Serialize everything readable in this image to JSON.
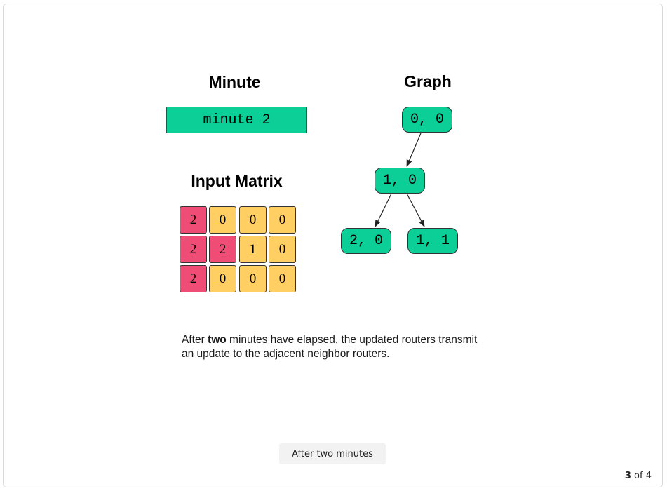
{
  "minute_section": {
    "title": "Minute",
    "value": "minute 2"
  },
  "matrix_section": {
    "title": "Input Matrix",
    "rows": [
      [
        {
          "value": "2",
          "color": "#ef4d75"
        },
        {
          "value": "0",
          "color": "#ffcf63"
        },
        {
          "value": "0",
          "color": "#ffcf63"
        },
        {
          "value": "0",
          "color": "#ffcf63"
        }
      ],
      [
        {
          "value": "2",
          "color": "#ef4d75"
        },
        {
          "value": "2",
          "color": "#ef4d75"
        },
        {
          "value": "1",
          "color": "#ffcf63"
        },
        {
          "value": "0",
          "color": "#ffcf63"
        }
      ],
      [
        {
          "value": "2",
          "color": "#ef4d75"
        },
        {
          "value": "0",
          "color": "#ffcf63"
        },
        {
          "value": "0",
          "color": "#ffcf63"
        },
        {
          "value": "0",
          "color": "#ffcf63"
        }
      ]
    ]
  },
  "graph_section": {
    "title": "Graph",
    "nodes": [
      "0, 0",
      "1, 0",
      "2, 0",
      "1, 1"
    ],
    "edges": [
      [
        "0, 0",
        "1, 0"
      ],
      [
        "1, 0",
        "2, 0"
      ],
      [
        "1, 0",
        "1, 1"
      ]
    ],
    "node_color": "#0ccf98"
  },
  "caption": {
    "prefix": "After ",
    "bold": "two",
    "suffix": " minutes have elapsed, the updated routers transmit an update to the adjacent neighbor routers."
  },
  "step_button": {
    "label": "After two minutes"
  },
  "pager": {
    "current": "3",
    "separator": " of ",
    "total": "4"
  }
}
